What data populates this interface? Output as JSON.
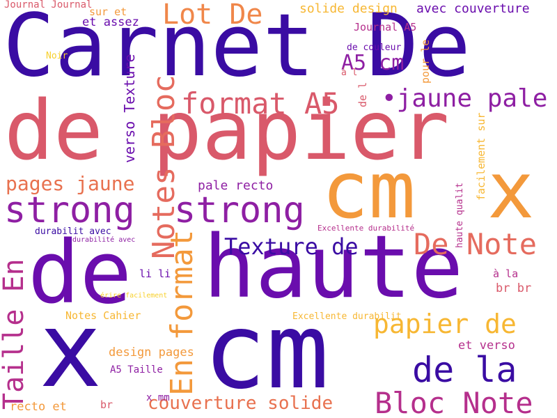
{
  "palette": {
    "indigo": "#3a0ca3",
    "purple": "#6a0dad",
    "violet": "#8e1fa3",
    "magenta": "#b52f8c",
    "rose": "#d9596a",
    "coral": "#e8714f",
    "orange": "#f3993b",
    "amber": "#f7b733",
    "yellow": "#f7d02c",
    "background": "#ffffff"
  },
  "words": {
    "carnet_de": "Carnet De",
    "de_papier": "de papier",
    "haute": "haute",
    "de_big": "de",
    "cm_big": "cm",
    "x_big": "x",
    "cm_mid": "cm",
    "x_mid": "x",
    "strong_1": "strong",
    "strong_2": "strong",
    "lot_de": "Lot De",
    "format_a5": "format A5",
    "jaune_pale": "•jaune pale",
    "a5_cm": "A5 cm",
    "notes_bloc": "Notes Bloc",
    "en_format": "En format",
    "taille_en": "Taille En",
    "texture_de": "Texture de",
    "de_note": "De Note",
    "papier_de": "papier de",
    "de_la": "de la",
    "bloc_note": "Bloc Note",
    "couverture_solide": "couverture solide",
    "pages_jaune": "pages jaune",
    "pale_recto": "pale recto",
    "verso_texture": "verso Texture",
    "solide_design": "solide design",
    "avec_couverture": "avec couverture",
    "journal_journal": "Journal Journal",
    "sur_et": "sur et",
    "et_assez": "et assez",
    "journal_a5": "Journal A5",
    "de_couleur": "de couleur",
    "noir": "Noir",
    "a_l": "à l",
    "de_l": "de l",
    "pour_le": "pour le",
    "facilement_sur": "facilement sur",
    "haute_qualit": "haute qualit",
    "excellente_durabilite": "Excellente durabilité",
    "durabilit_avec": "durabilit avec",
    "durabilite_avec": "durabilité avec",
    "li_li": "li li",
    "a_la": "à la",
    "br_br": "br br",
    "ecrire_facilement": "érire facilement",
    "notes_cahier": "Notes Cahier",
    "excellente_durabilit": "Excellente durabilit",
    "design_pages": "design pages",
    "et_verso": "et verso",
    "a5_taille": "A5 Taille",
    "x_mm": "x mm",
    "recto_et": "recto et",
    "br": "br"
  }
}
